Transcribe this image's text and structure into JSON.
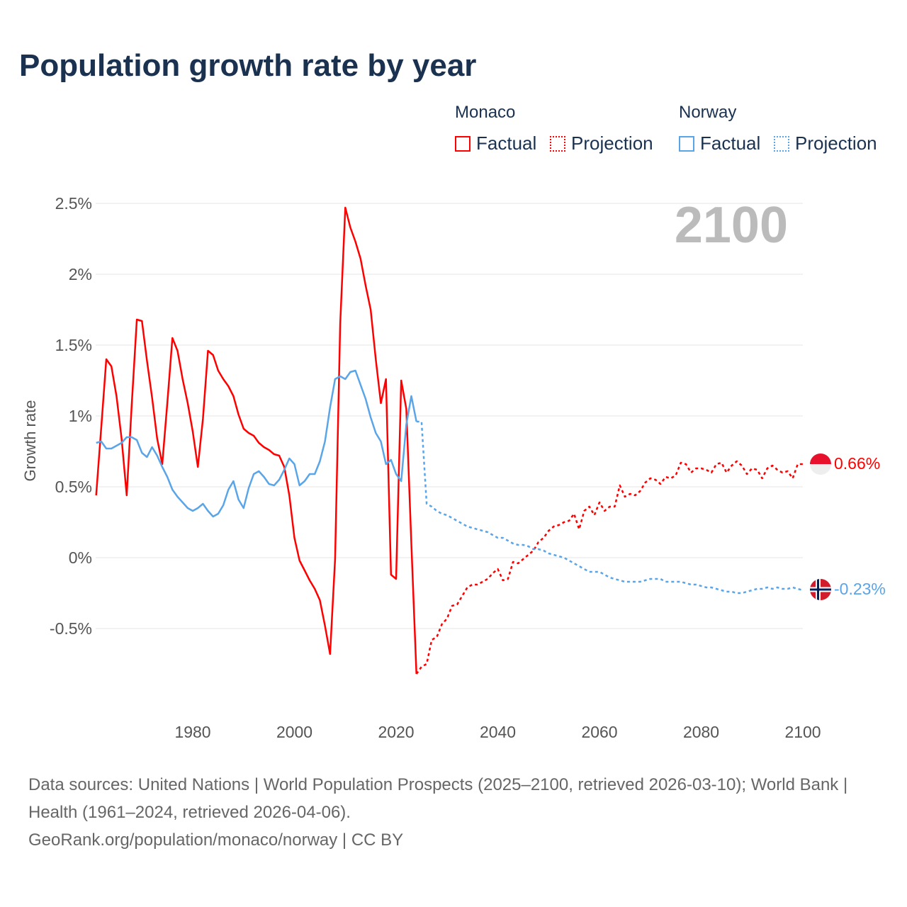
{
  "title": "Population growth rate by year",
  "legend": {
    "groups": [
      {
        "name": "Monaco",
        "factual": "Factual",
        "projection": "Projection",
        "color": "#ff0000"
      },
      {
        "name": "Norway",
        "factual": "Factual",
        "projection": "Projection",
        "color": "#5aa5e8"
      }
    ]
  },
  "year_label": "2100",
  "end_labels": {
    "monaco": "0.66%",
    "norway": "-0.23%"
  },
  "footer": {
    "sources": "Data sources: United Nations | World Population Prospects (2025–2100, retrieved 2026-03-10); World Bank | Health (1961–2024, retrieved 2026-04-06).",
    "link": "GeoRank.org/population/monaco/norway | CC BY"
  },
  "chart_data": {
    "type": "line",
    "title": "Population growth rate by year",
    "xlabel": "",
    "ylabel": "Growth rate",
    "xlim": [
      1961,
      2100
    ],
    "ylim": [
      -1.0,
      2.5
    ],
    "x_ticks": [
      1980,
      2000,
      2020,
      2040,
      2060,
      2080,
      2100
    ],
    "y_ticks": [
      {
        "v": 2.5,
        "label": "2.5%"
      },
      {
        "v": 2,
        "label": "2%"
      },
      {
        "v": 1.5,
        "label": "1.5%"
      },
      {
        "v": 1,
        "label": "1%"
      },
      {
        "v": 0.5,
        "label": "0.5%"
      },
      {
        "v": 0,
        "label": "0%"
      },
      {
        "v": -0.5,
        "label": "-0.5%"
      }
    ],
    "series": [
      {
        "name": "Monaco Factual",
        "color": "#ff0000",
        "dashed": false,
        "start": 1961,
        "values": [
          0.44,
          0.92,
          1.4,
          1.35,
          1.14,
          0.84,
          0.44,
          1.08,
          1.68,
          1.67,
          1.39,
          1.13,
          0.84,
          0.66,
          1.09,
          1.55,
          1.46,
          1.26,
          1.09,
          0.89,
          0.64,
          0.98,
          1.46,
          1.43,
          1.32,
          1.26,
          1.21,
          1.14,
          1.01,
          0.91,
          0.88,
          0.86,
          0.81,
          0.78,
          0.76,
          0.73,
          0.72,
          0.64,
          0.44,
          0.14,
          -0.02,
          -0.09,
          -0.16,
          -0.22,
          -0.3,
          -0.48,
          -0.68,
          -0.01,
          1.65,
          2.47,
          2.33,
          2.23,
          2.11,
          1.92,
          1.75,
          1.4,
          1.09,
          1.26,
          -0.12,
          -0.15,
          1.25,
          1.05,
          0.1,
          -0.82
        ]
      },
      {
        "name": "Monaco Projection",
        "color": "#ff0000",
        "dashed": true,
        "start": 2024,
        "values": [
          -0.82,
          -0.77,
          -0.75,
          -0.58,
          -0.56,
          -0.47,
          -0.43,
          -0.34,
          -0.33,
          -0.27,
          -0.21,
          -0.19,
          -0.19,
          -0.17,
          -0.15,
          -0.11,
          -0.08,
          -0.16,
          -0.15,
          -0.03,
          -0.04,
          -0.01,
          0.02,
          0.05,
          0.11,
          0.14,
          0.19,
          0.22,
          0.23,
          0.25,
          0.26,
          0.31,
          0.2,
          0.33,
          0.36,
          0.3,
          0.39,
          0.33,
          0.36,
          0.36,
          0.51,
          0.43,
          0.45,
          0.44,
          0.47,
          0.53,
          0.56,
          0.55,
          0.52,
          0.57,
          0.56,
          0.58,
          0.67,
          0.66,
          0.6,
          0.63,
          0.63,
          0.62,
          0.6,
          0.66,
          0.67,
          0.6,
          0.65,
          0.68,
          0.65,
          0.59,
          0.63,
          0.62,
          0.56,
          0.63,
          0.65,
          0.62,
          0.6,
          0.61,
          0.56,
          0.66,
          0.66
        ]
      },
      {
        "name": "Norway Factual",
        "color": "#5aa5e8",
        "dashed": false,
        "start": 1961,
        "values": [
          0.81,
          0.82,
          0.77,
          0.77,
          0.79,
          0.81,
          0.85,
          0.85,
          0.83,
          0.74,
          0.71,
          0.78,
          0.72,
          0.64,
          0.57,
          0.48,
          0.43,
          0.39,
          0.35,
          0.33,
          0.35,
          0.38,
          0.33,
          0.29,
          0.31,
          0.37,
          0.48,
          0.54,
          0.41,
          0.35,
          0.49,
          0.59,
          0.61,
          0.57,
          0.52,
          0.51,
          0.55,
          0.62,
          0.7,
          0.66,
          0.51,
          0.54,
          0.59,
          0.59,
          0.68,
          0.82,
          1.06,
          1.26,
          1.28,
          1.26,
          1.31,
          1.32,
          1.22,
          1.12,
          0.99,
          0.88,
          0.82,
          0.66,
          0.69,
          0.59,
          0.54,
          0.94,
          1.14,
          0.96
        ]
      },
      {
        "name": "Norway Projection",
        "color": "#5aa5e8",
        "dashed": true,
        "start": 2024,
        "values": [
          0.96,
          0.96,
          0.38,
          0.36,
          0.33,
          0.31,
          0.3,
          0.28,
          0.26,
          0.24,
          0.22,
          0.21,
          0.2,
          0.19,
          0.18,
          0.16,
          0.14,
          0.14,
          0.12,
          0.1,
          0.09,
          0.09,
          0.08,
          0.06,
          0.06,
          0.05,
          0.03,
          0.02,
          0.01,
          0.0,
          -0.02,
          -0.04,
          -0.06,
          -0.08,
          -0.1,
          -0.1,
          -0.1,
          -0.12,
          -0.14,
          -0.15,
          -0.16,
          -0.17,
          -0.17,
          -0.17,
          -0.17,
          -0.16,
          -0.15,
          -0.15,
          -0.15,
          -0.17,
          -0.17,
          -0.17,
          -0.17,
          -0.18,
          -0.19,
          -0.19,
          -0.2,
          -0.21,
          -0.21,
          -0.22,
          -0.23,
          -0.24,
          -0.24,
          -0.25,
          -0.25,
          -0.24,
          -0.23,
          -0.22,
          -0.22,
          -0.21,
          -0.22,
          -0.21,
          -0.22,
          -0.22,
          -0.21,
          -0.22,
          -0.23
        ]
      }
    ]
  }
}
